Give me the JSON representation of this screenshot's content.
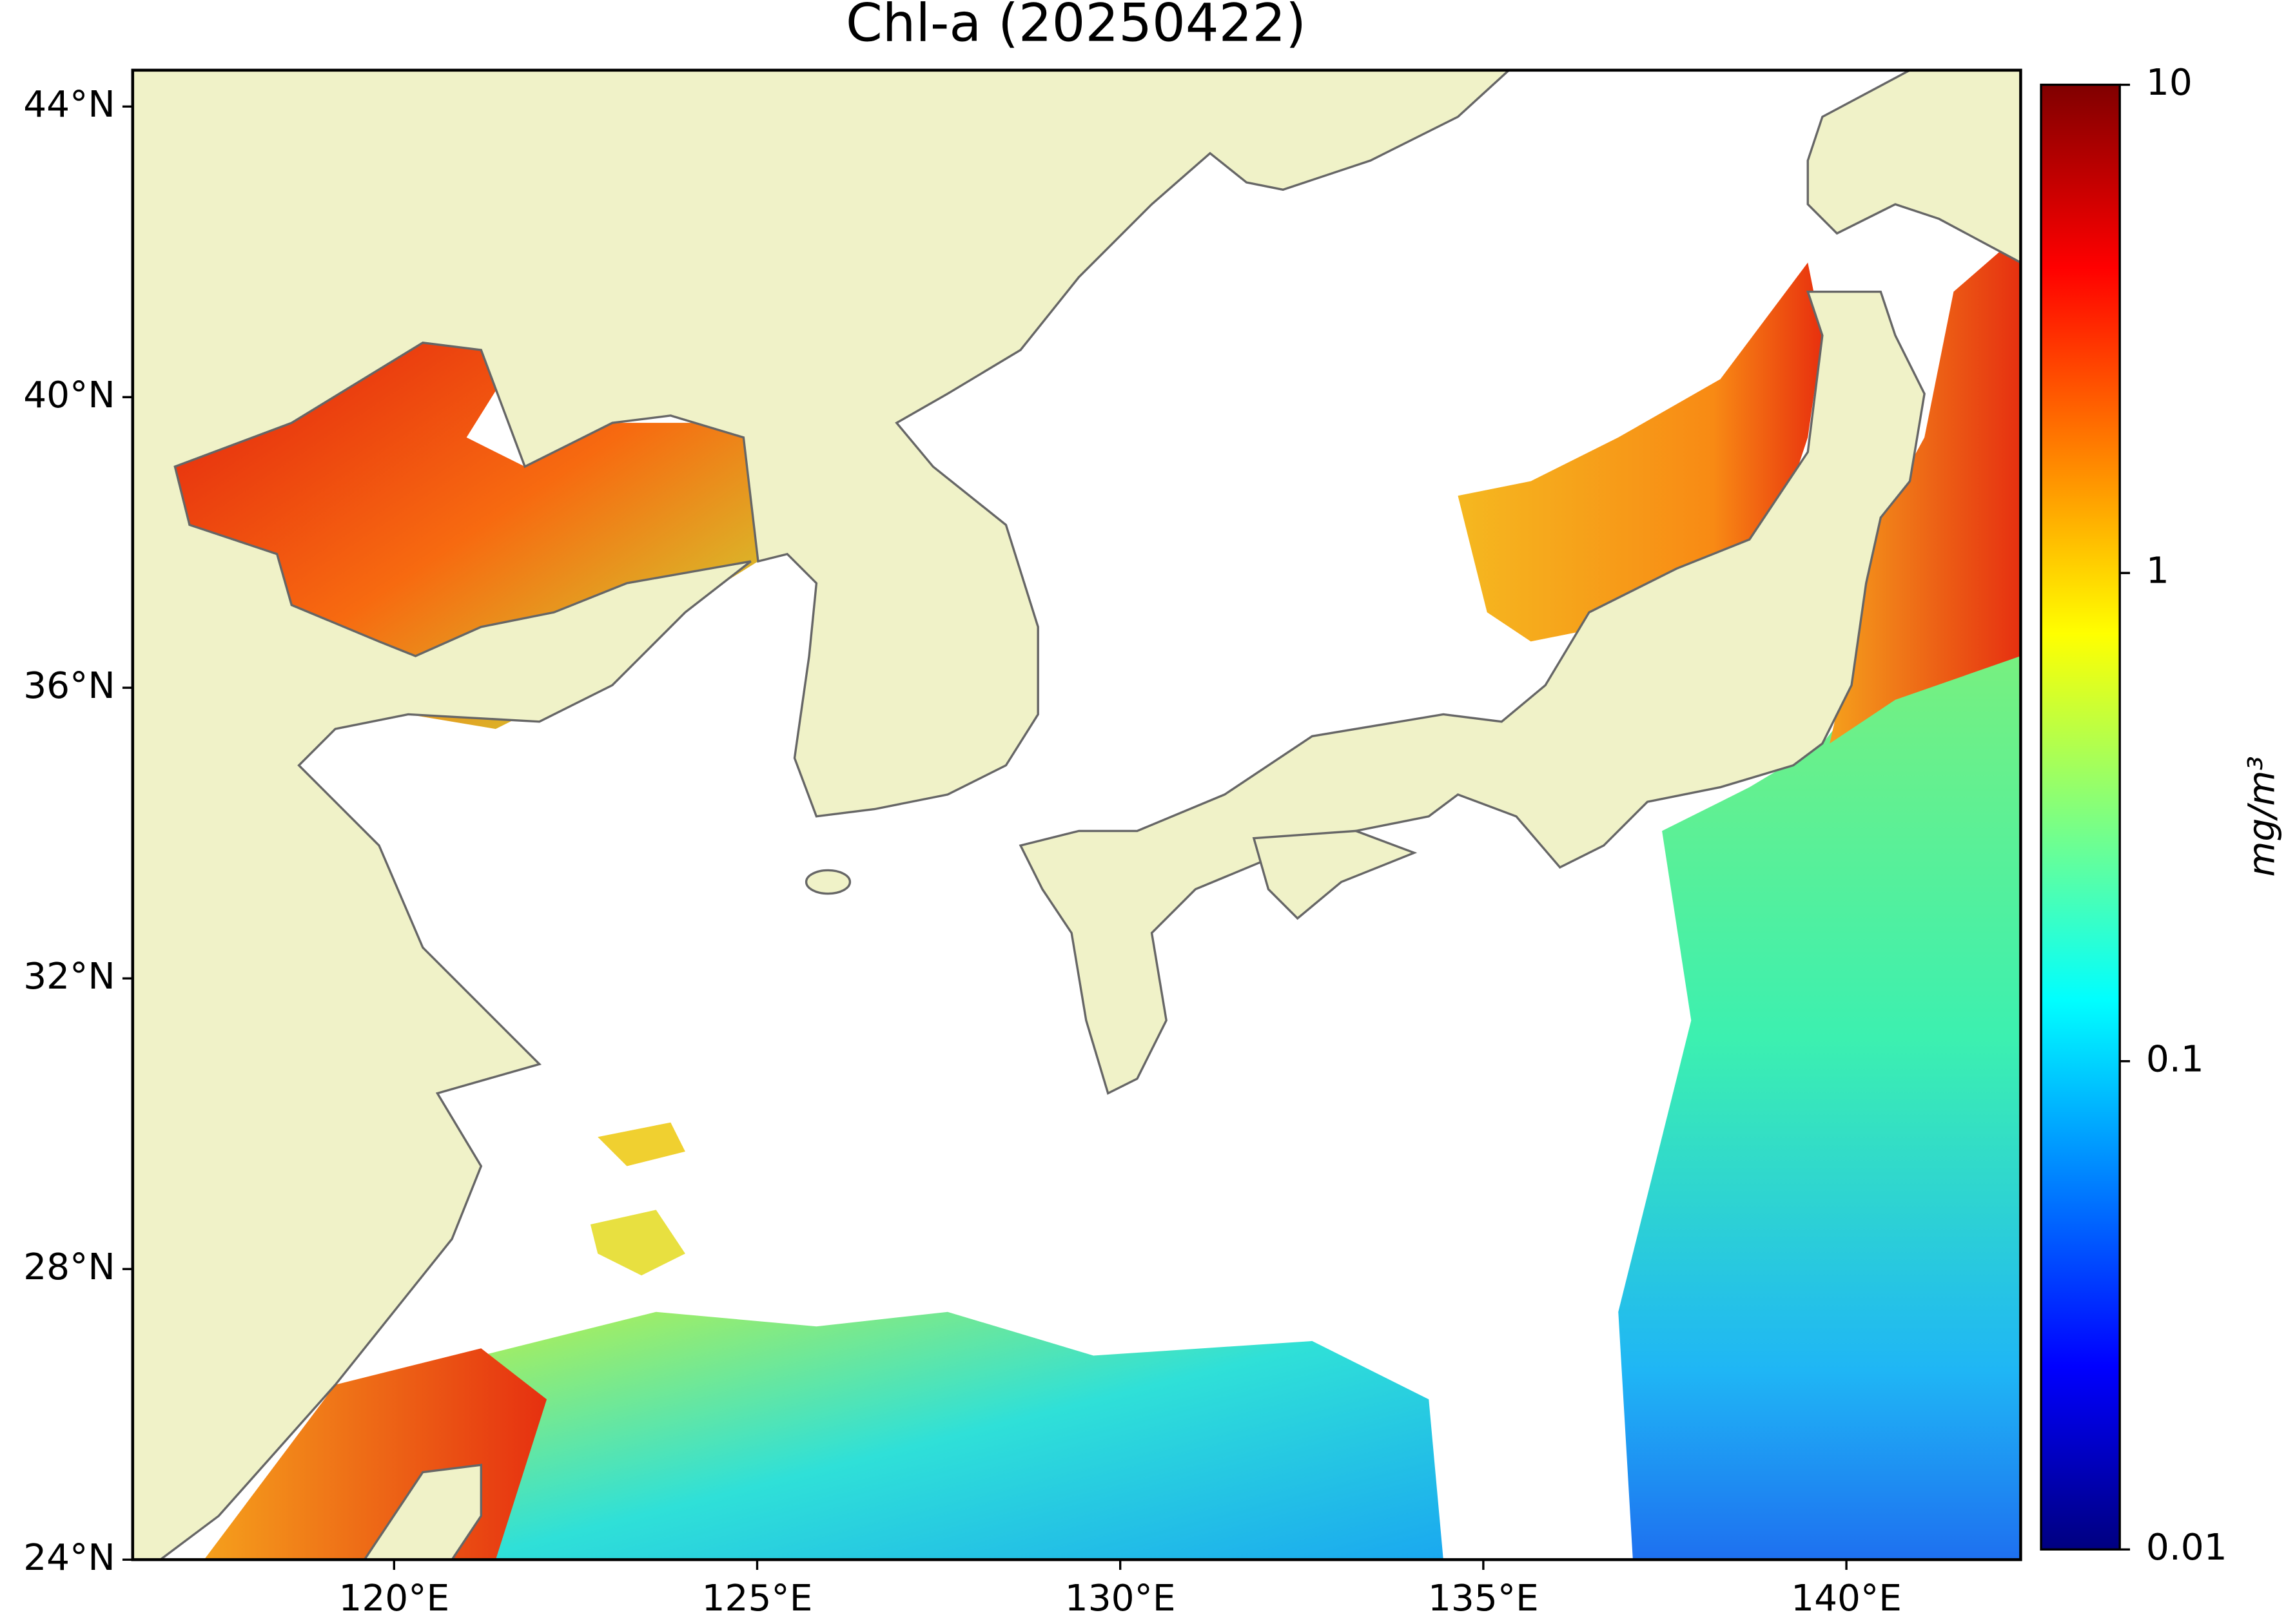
{
  "title": "Chl-a (20250422)",
  "map": {
    "xlim": [
      116.4,
      142.4
    ],
    "ylim": [
      24,
      44.5
    ],
    "xticks": [
      {
        "value": 120,
        "label": "120°E"
      },
      {
        "value": 125,
        "label": "125°E"
      },
      {
        "value": 130,
        "label": "130°E"
      },
      {
        "value": 135,
        "label": "135°E"
      },
      {
        "value": 140,
        "label": "140°E"
      }
    ],
    "yticks": [
      {
        "value": 24,
        "label": "24°N"
      },
      {
        "value": 28,
        "label": "28°N"
      },
      {
        "value": 32,
        "label": "32°N"
      },
      {
        "value": 36,
        "label": "36°N"
      },
      {
        "value": 40,
        "label": "40°N"
      },
      {
        "value": 44,
        "label": "44°N"
      }
    ]
  },
  "colorbar": {
    "label": "mg/m³",
    "scale": "log",
    "lim": [
      0.01,
      10
    ],
    "ticks": [
      0.01,
      0.1,
      1,
      10
    ]
  }
}
